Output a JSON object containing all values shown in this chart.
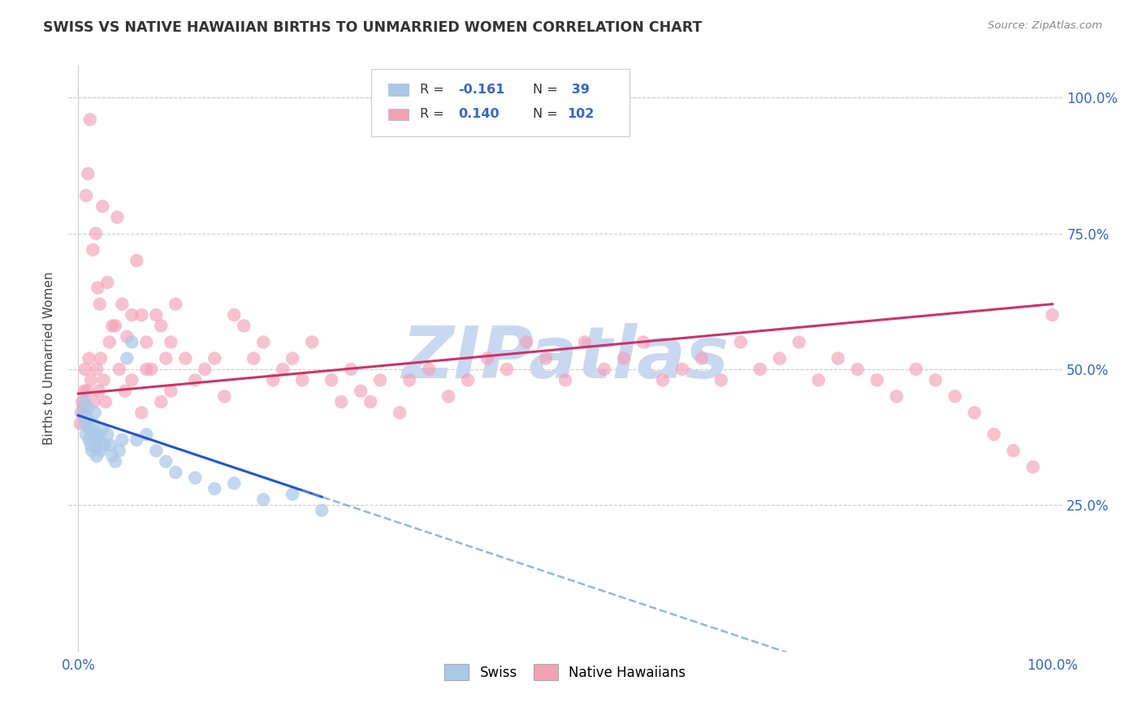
{
  "title": "SWISS VS NATIVE HAWAIIAN BIRTHS TO UNMARRIED WOMEN CORRELATION CHART",
  "source": "Source: ZipAtlas.com",
  "ylabel": "Births to Unmarried Women",
  "swiss_color": "#aac8e8",
  "hawaiian_color": "#f4a0b8",
  "trend_swiss_solid_color": "#2255cc",
  "trend_swiss_dash_color": "#6699cc",
  "trend_hawaiian_color": "#cc3366",
  "r_swiss": "-0.161",
  "n_swiss": "39",
  "r_hawaiian": "0.140",
  "n_hawaiian": "102",
  "watermark_text": "ZIPatlas",
  "watermark_color": "#c8d8f0",
  "grid_color": "#cccccc",
  "label_color": "#3366cc",
  "title_color": "#333333",
  "axis_label_color": "#444444",
  "xlim": [
    0.0,
    1.0
  ],
  "ylim": [
    0.0,
    1.0
  ],
  "ytick_vals": [
    0.0,
    0.25,
    0.5,
    0.75,
    1.0
  ],
  "right_ytick_labels": [
    "",
    "25.0%",
    "50.0%",
    "75.0%",
    "100.0%"
  ],
  "xtick_positions": [
    0.0,
    1.0
  ],
  "xtick_labels": [
    "0.0%",
    "100.0%"
  ],
  "swiss_x": [
    0.005,
    0.006,
    0.007,
    0.008,
    0.009,
    0.01,
    0.011,
    0.012,
    0.013,
    0.014,
    0.015,
    0.016,
    0.017,
    0.018,
    0.019,
    0.02,
    0.022,
    0.023,
    0.025,
    0.027,
    0.03,
    0.033,
    0.035,
    0.038,
    0.042,
    0.045,
    0.05,
    0.055,
    0.06,
    0.07,
    0.08,
    0.09,
    0.1,
    0.12,
    0.14,
    0.16,
    0.19,
    0.22,
    0.25
  ],
  "swiss_y": [
    0.42,
    0.44,
    0.4,
    0.38,
    0.41,
    0.43,
    0.37,
    0.39,
    0.36,
    0.35,
    0.4,
    0.38,
    0.42,
    0.36,
    0.34,
    0.38,
    0.37,
    0.35,
    0.39,
    0.36,
    0.38,
    0.36,
    0.34,
    0.33,
    0.35,
    0.37,
    0.52,
    0.55,
    0.37,
    0.38,
    0.35,
    0.33,
    0.31,
    0.3,
    0.28,
    0.29,
    0.26,
    0.27,
    0.24
  ],
  "hawaiian_x": [
    0.005,
    0.006,
    0.008,
    0.01,
    0.012,
    0.015,
    0.018,
    0.02,
    0.022,
    0.025,
    0.03,
    0.035,
    0.04,
    0.045,
    0.05,
    0.055,
    0.06,
    0.065,
    0.07,
    0.075,
    0.08,
    0.085,
    0.09,
    0.095,
    0.1,
    0.11,
    0.12,
    0.13,
    0.14,
    0.15,
    0.16,
    0.17,
    0.18,
    0.19,
    0.2,
    0.21,
    0.22,
    0.23,
    0.24,
    0.26,
    0.27,
    0.28,
    0.29,
    0.3,
    0.31,
    0.33,
    0.34,
    0.36,
    0.38,
    0.4,
    0.42,
    0.44,
    0.46,
    0.48,
    0.5,
    0.52,
    0.54,
    0.56,
    0.58,
    0.6,
    0.62,
    0.64,
    0.66,
    0.68,
    0.7,
    0.72,
    0.74,
    0.76,
    0.78,
    0.8,
    0.82,
    0.84,
    0.86,
    0.88,
    0.9,
    0.92,
    0.94,
    0.96,
    0.98,
    1.0,
    0.002,
    0.003,
    0.004,
    0.007,
    0.009,
    0.011,
    0.013,
    0.016,
    0.019,
    0.021,
    0.023,
    0.026,
    0.028,
    0.032,
    0.038,
    0.042,
    0.048,
    0.055,
    0.065,
    0.07,
    0.085,
    0.095
  ],
  "hawaiian_y": [
    0.43,
    0.46,
    0.82,
    0.86,
    0.96,
    0.72,
    0.75,
    0.65,
    0.62,
    0.8,
    0.66,
    0.58,
    0.78,
    0.62,
    0.56,
    0.6,
    0.7,
    0.6,
    0.55,
    0.5,
    0.6,
    0.58,
    0.52,
    0.55,
    0.62,
    0.52,
    0.48,
    0.5,
    0.52,
    0.45,
    0.6,
    0.58,
    0.52,
    0.55,
    0.48,
    0.5,
    0.52,
    0.48,
    0.55,
    0.48,
    0.44,
    0.5,
    0.46,
    0.44,
    0.48,
    0.42,
    0.48,
    0.5,
    0.45,
    0.48,
    0.52,
    0.5,
    0.55,
    0.52,
    0.48,
    0.55,
    0.5,
    0.52,
    0.55,
    0.48,
    0.5,
    0.52,
    0.48,
    0.55,
    0.5,
    0.52,
    0.55,
    0.48,
    0.52,
    0.5,
    0.48,
    0.45,
    0.5,
    0.48,
    0.45,
    0.42,
    0.38,
    0.35,
    0.32,
    0.6,
    0.4,
    0.42,
    0.44,
    0.5,
    0.46,
    0.52,
    0.48,
    0.44,
    0.5,
    0.46,
    0.52,
    0.48,
    0.44,
    0.55,
    0.58,
    0.5,
    0.46,
    0.48,
    0.42,
    0.5,
    0.44,
    0.46
  ]
}
